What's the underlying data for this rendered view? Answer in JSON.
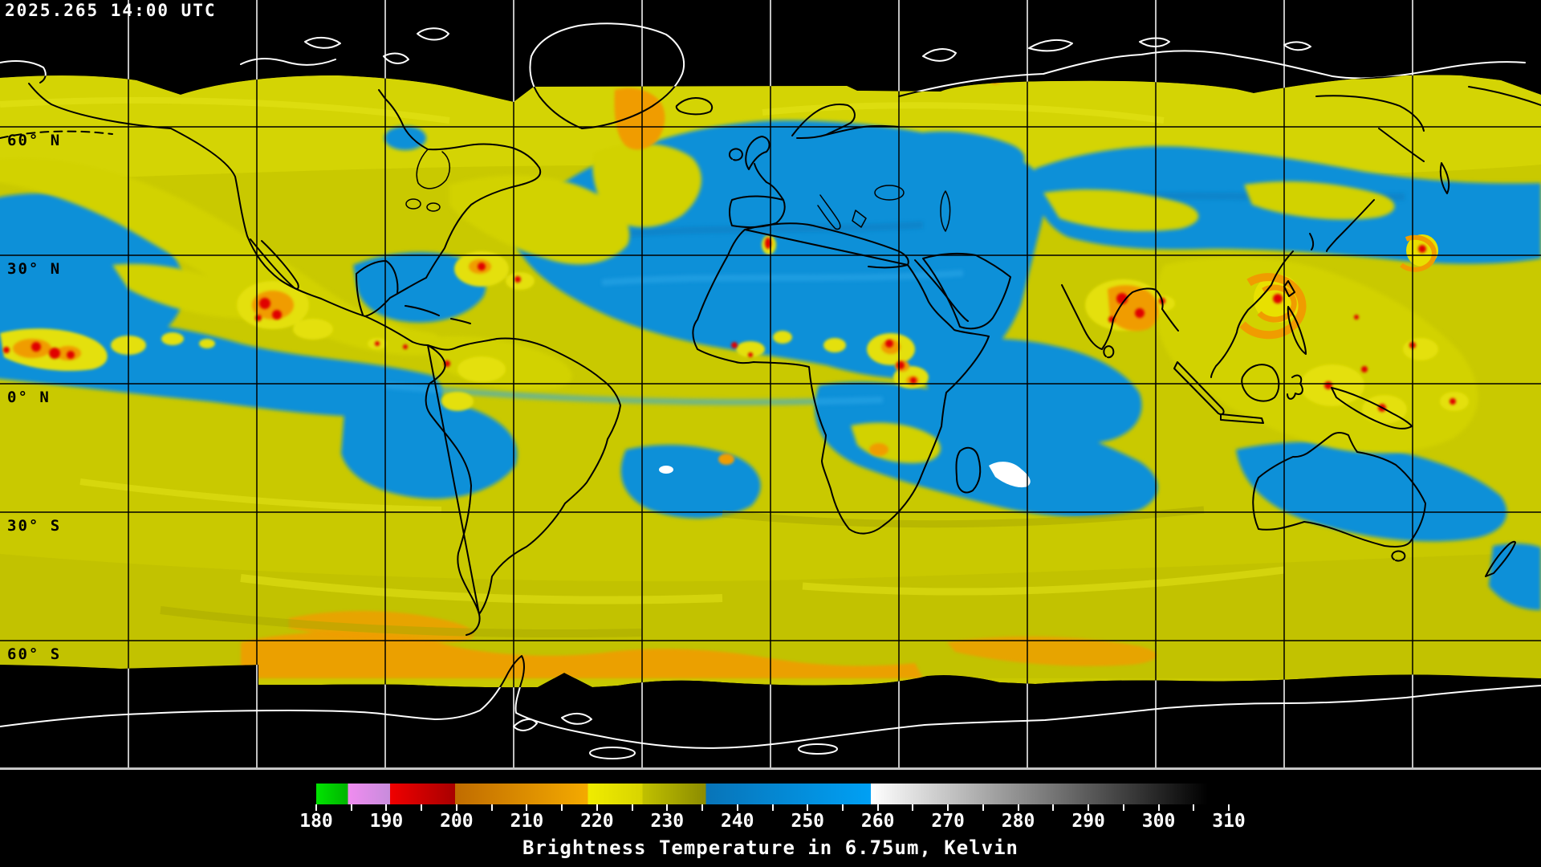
{
  "header": {
    "timestamp": "2025.265 14:00 UTC"
  },
  "map": {
    "latitude_labels": [
      "60° N",
      "30° N",
      "0° N",
      "30° S",
      "60° S"
    ],
    "grid": {
      "longitude_lines": 11,
      "latitude_lines": 5
    }
  },
  "colorbar": {
    "range_kelvin": [
      180,
      310
    ],
    "minor_tick_step_kelvin": 5,
    "tick_labels": [
      "180",
      "190",
      "200",
      "210",
      "220",
      "230",
      "240",
      "250",
      "260",
      "270",
      "280",
      "290",
      "300",
      "310"
    ],
    "caption": "Brightness Temperature in 6.75um, Kelvin",
    "scale_segments": [
      {
        "from": 180,
        "to": 184.5,
        "color_start": "#00e400",
        "color_end": "#00b400",
        "name": "green"
      },
      {
        "from": 184.5,
        "to": 190.5,
        "color_start": "#f08cf0",
        "color_end": "#c88cdc",
        "name": "violet"
      },
      {
        "from": 190.5,
        "to": 199.8,
        "color_start": "#f00000",
        "color_end": "#a80000",
        "name": "red"
      },
      {
        "from": 199.8,
        "to": 218.7,
        "color_start": "#c06c00",
        "color_end": "#f4aa00",
        "name": "orange"
      },
      {
        "from": 218.7,
        "to": 226.5,
        "color_start": "#f0ec00",
        "color_end": "#d8d400",
        "name": "yellow"
      },
      {
        "from": 226.5,
        "to": 235.5,
        "color_start": "#c0c000",
        "color_end": "#8c8c00",
        "name": "olive"
      },
      {
        "from": 235.5,
        "to": 259,
        "color_start": "#0874b8",
        "color_end": "#00a0f4",
        "name": "blue"
      },
      {
        "from": 259,
        "to": 307,
        "color_start": "#ffffff",
        "color_end": "#000000",
        "name": "grayscale"
      },
      {
        "from": 307,
        "to": 310,
        "color_start": "#000000",
        "color_end": "#000000",
        "name": "black"
      }
    ]
  },
  "colors": {
    "background": "#000000",
    "grid_on_data": "#000000",
    "grid_on_void": "#ffffff",
    "coast_on_data": "#000000",
    "coast_on_void": "#ffffff",
    "cloud_yellow": "#c9c900",
    "dry_air_blue": "#0b90d8",
    "cold_cloud_orange": "#f09c00",
    "coldest_cloud_red": "#e00000"
  }
}
